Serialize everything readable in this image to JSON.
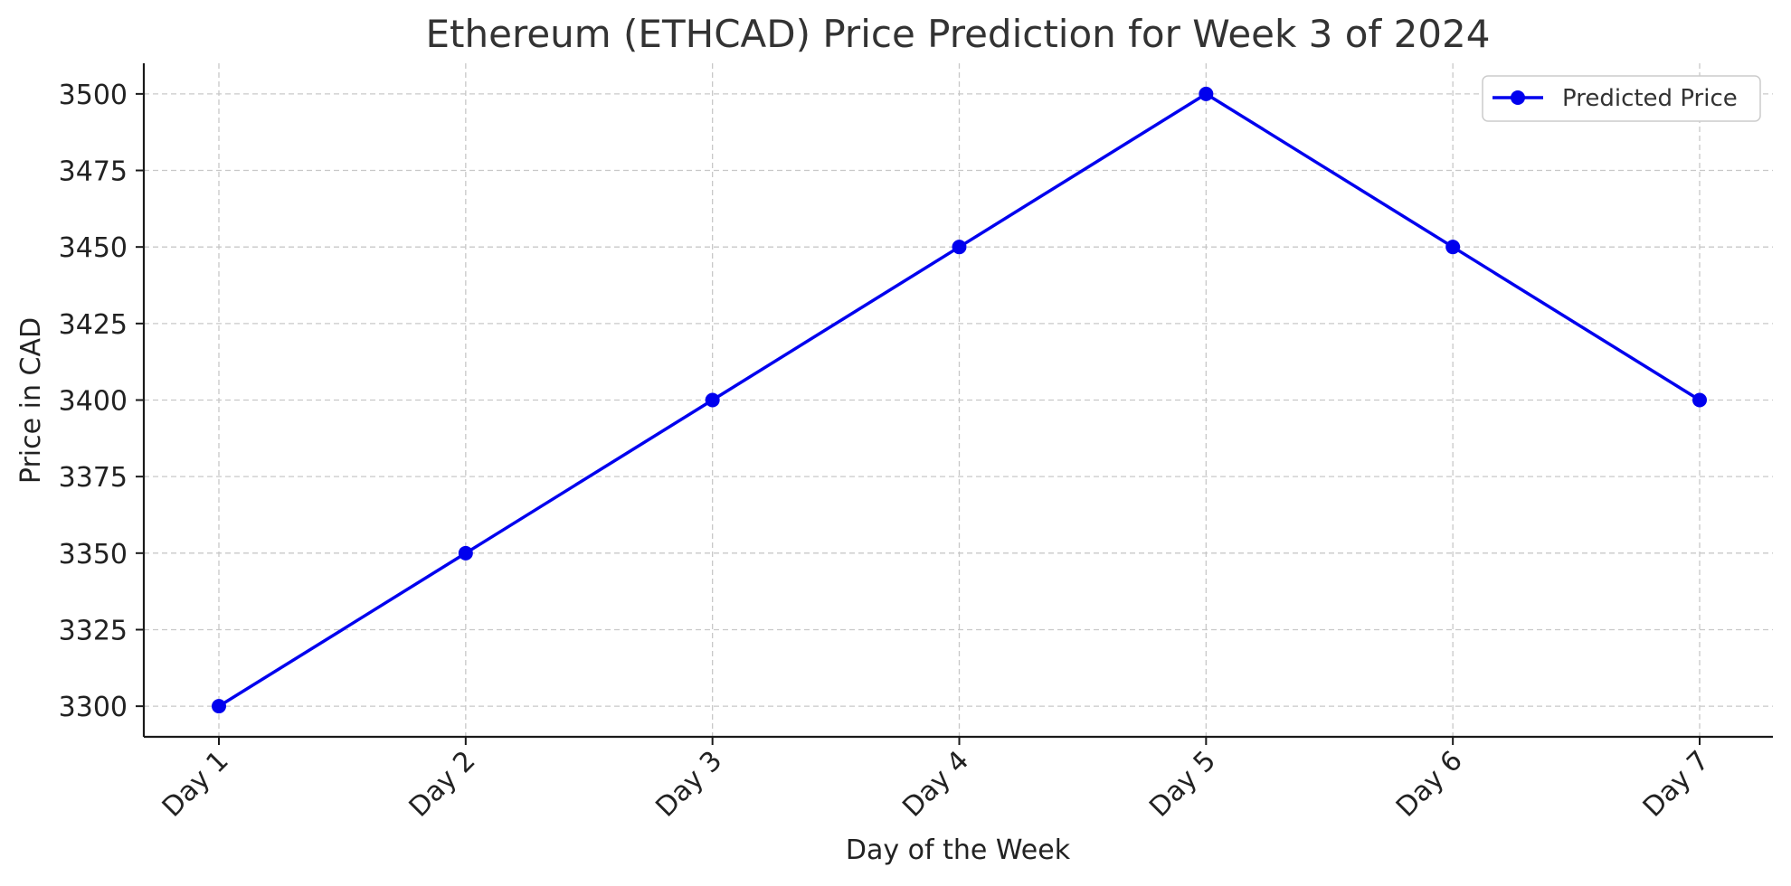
{
  "chart_data": {
    "type": "line",
    "title": "Ethereum (ETHCAD) Price Prediction for Week 3 of 2024",
    "xlabel": "Day of the Week",
    "ylabel": "Price in CAD",
    "categories": [
      "Day 1",
      "Day 2",
      "Day 3",
      "Day 4",
      "Day 5",
      "Day 6",
      "Day 7"
    ],
    "series": [
      {
        "name": "Predicted Price",
        "color": "#0000ee",
        "marker": "circle",
        "values": [
          3300,
          3350,
          3400,
          3450,
          3500,
          3450,
          3400
        ]
      }
    ],
    "yticks": [
      "3300",
      "3325",
      "3350",
      "3375",
      "3400",
      "3425",
      "3450",
      "3475",
      "3500"
    ],
    "ylim": [
      3290,
      3510
    ],
    "grid": true,
    "legend_position": "top-right"
  }
}
